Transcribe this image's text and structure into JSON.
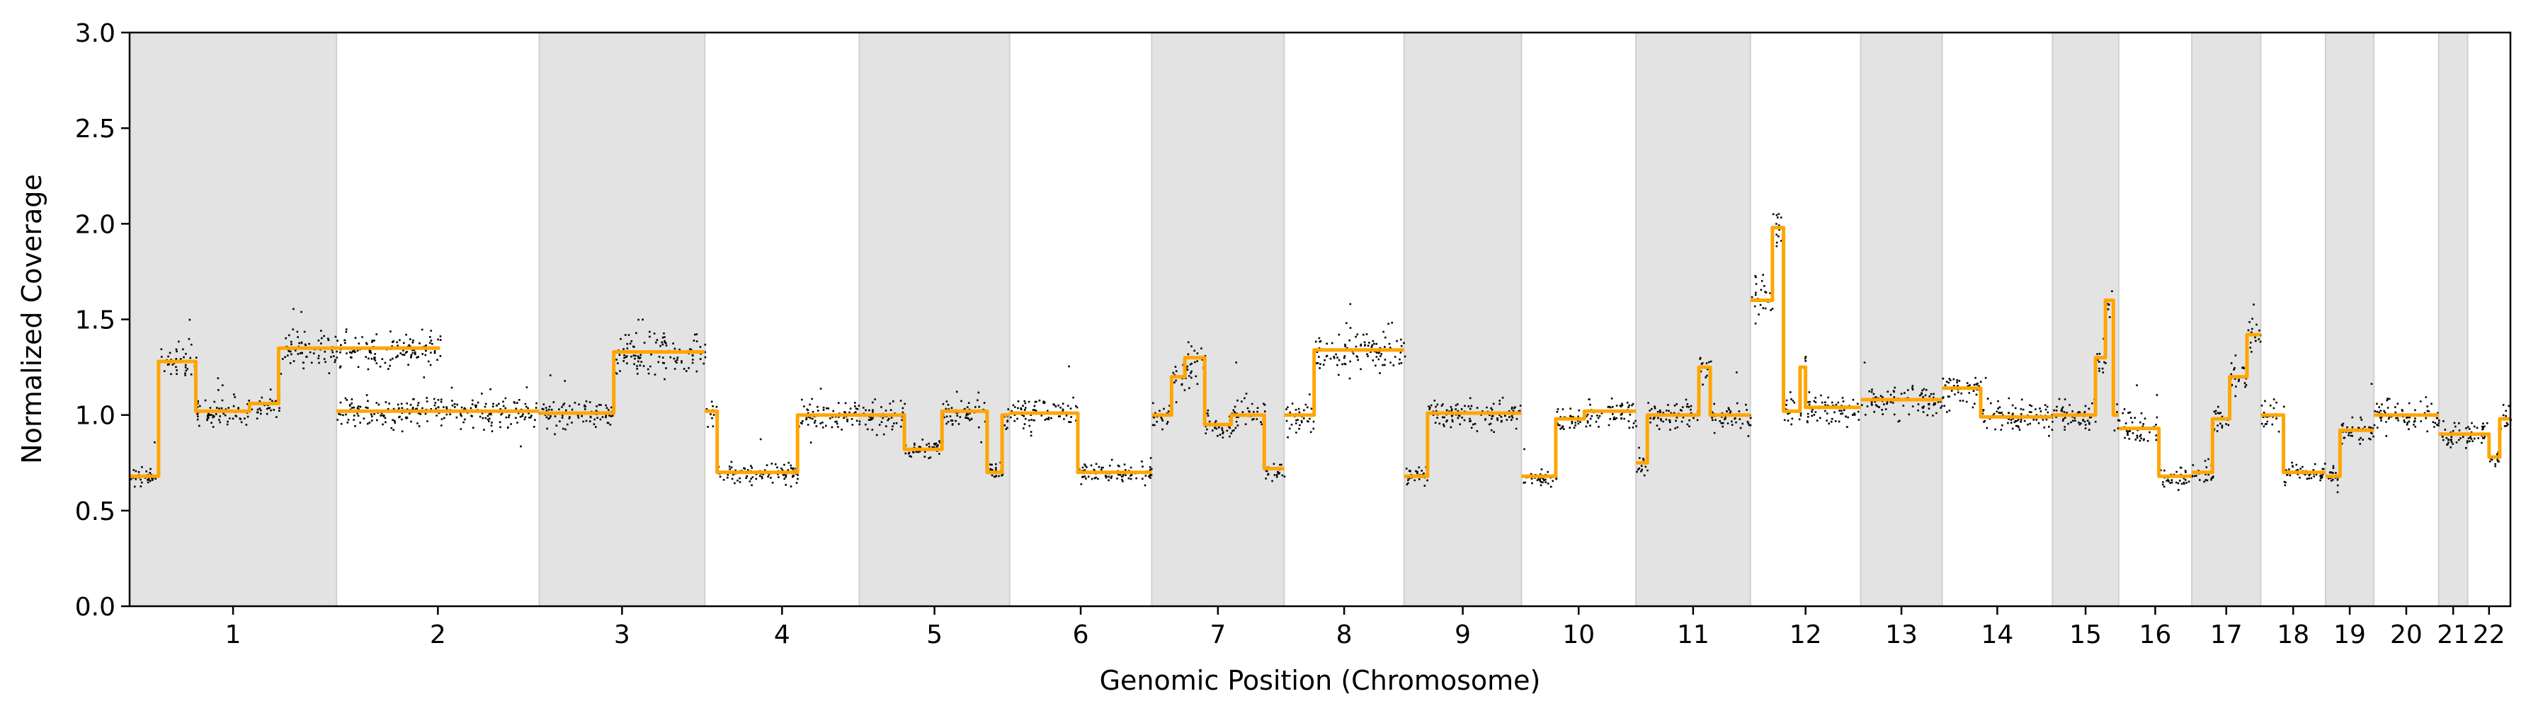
{
  "chart_data": {
    "type": "scatter",
    "title": "",
    "xlabel": "Genomic Position (Chromosome)",
    "ylabel": "Normalized Coverage",
    "ylim": [
      0.0,
      3.0
    ],
    "yticks": [
      "0.0",
      "0.5",
      "1.0",
      "1.5",
      "2.0",
      "2.5",
      "3.0"
    ],
    "grid": false,
    "legend": "none",
    "colors": {
      "points": "#000000",
      "segments": "#FFA500",
      "band": "#E3E3E3"
    },
    "chromosomes": [
      {
        "label": "1",
        "start": 0.0,
        "end": 1.5,
        "shaded": true,
        "segments": [
          [
            0.0,
            0.14,
            0.68
          ],
          [
            0.14,
            0.32,
            1.28
          ],
          [
            0.32,
            0.58,
            1.02
          ],
          [
            0.58,
            0.72,
            1.06
          ],
          [
            0.72,
            1.5,
            1.35
          ]
        ]
      },
      {
        "label": "2",
        "start": 1.5,
        "end": 2.97,
        "shaded": false,
        "segments": [
          [
            0.0,
            1.0,
            1.02
          ]
        ]
      },
      {
        "label": "3",
        "start": 2.97,
        "end": 4.17,
        "shaded": true,
        "segments": [
          [
            0.0,
            0.45,
            1.01
          ],
          [
            0.45,
            1.0,
            1.33
          ]
        ]
      },
      {
        "label": "4",
        "start": 4.17,
        "end": 5.29,
        "shaded": false,
        "segments": [
          [
            0.0,
            0.08,
            1.02
          ],
          [
            0.08,
            0.6,
            0.7
          ],
          [
            0.6,
            1.0,
            1.0
          ]
        ]
      },
      {
        "label": "5",
        "start": 5.29,
        "end": 6.38,
        "shaded": true,
        "segments": [
          [
            0.0,
            0.3,
            1.0
          ],
          [
            0.3,
            0.55,
            0.82
          ],
          [
            0.55,
            0.85,
            1.02
          ],
          [
            0.85,
            0.95,
            0.7
          ],
          [
            0.95,
            1.0,
            1.0
          ]
        ]
      },
      {
        "label": "6",
        "start": 6.38,
        "end": 7.41,
        "shaded": false,
        "segments": [
          [
            0.0,
            0.48,
            1.01
          ],
          [
            0.48,
            1.0,
            0.7
          ]
        ]
      },
      {
        "label": "7",
        "start": 7.41,
        "end": 8.37,
        "shaded": true,
        "segments": [
          [
            0.0,
            0.15,
            1.0
          ],
          [
            0.15,
            0.25,
            1.2
          ],
          [
            0.25,
            0.4,
            1.3
          ],
          [
            0.4,
            0.6,
            0.95
          ],
          [
            0.6,
            0.85,
            1.0
          ],
          [
            0.85,
            1.0,
            0.72
          ]
        ]
      },
      {
        "label": "8",
        "start": 8.37,
        "end": 9.24,
        "shaded": false,
        "segments": [
          [
            0.0,
            0.25,
            1.0
          ],
          [
            0.25,
            1.0,
            1.34
          ]
        ]
      },
      {
        "label": "9",
        "start": 9.24,
        "end": 10.09,
        "shaded": true,
        "segments": [
          [
            0.0,
            0.2,
            0.68
          ],
          [
            0.2,
            1.0,
            1.01
          ]
        ]
      },
      {
        "label": "10",
        "start": 10.09,
        "end": 10.92,
        "shaded": false,
        "segments": [
          [
            0.0,
            0.3,
            0.68
          ],
          [
            0.3,
            0.55,
            0.98
          ],
          [
            0.55,
            1.0,
            1.02
          ]
        ]
      },
      {
        "label": "11",
        "start": 10.92,
        "end": 11.75,
        "shaded": true,
        "segments": [
          [
            0.0,
            0.1,
            0.75
          ],
          [
            0.1,
            0.55,
            1.0
          ],
          [
            0.55,
            0.65,
            1.25
          ],
          [
            0.65,
            1.0,
            1.0
          ]
        ]
      },
      {
        "label": "12",
        "start": 11.75,
        "end": 12.55,
        "shaded": false,
        "segments": [
          [
            0.0,
            0.2,
            1.6
          ],
          [
            0.2,
            0.3,
            1.98
          ],
          [
            0.3,
            0.45,
            1.02
          ],
          [
            0.45,
            0.5,
            1.25
          ],
          [
            0.5,
            1.0,
            1.04
          ]
        ]
      },
      {
        "label": "13",
        "start": 12.55,
        "end": 13.14,
        "shaded": true,
        "segments": [
          [
            0.0,
            1.0,
            1.08
          ]
        ]
      },
      {
        "label": "14",
        "start": 13.14,
        "end": 13.94,
        "shaded": false,
        "segments": [
          [
            0.0,
            0.35,
            1.14
          ],
          [
            0.35,
            1.0,
            0.99
          ]
        ]
      },
      {
        "label": "15",
        "start": 13.94,
        "end": 14.42,
        "shaded": true,
        "segments": [
          [
            0.0,
            0.65,
            1.0
          ],
          [
            0.65,
            0.8,
            1.3
          ],
          [
            0.8,
            0.92,
            1.6
          ],
          [
            0.92,
            1.0,
            1.0
          ]
        ]
      },
      {
        "label": "16",
        "start": 14.42,
        "end": 14.95,
        "shaded": false,
        "segments": [
          [
            0.0,
            0.55,
            0.93
          ],
          [
            0.55,
            1.0,
            0.68
          ]
        ]
      },
      {
        "label": "17",
        "start": 14.95,
        "end": 15.45,
        "shaded": true,
        "segments": [
          [
            0.0,
            0.3,
            0.7
          ],
          [
            0.3,
            0.55,
            0.98
          ],
          [
            0.55,
            0.8,
            1.2
          ],
          [
            0.8,
            1.0,
            1.42
          ]
        ]
      },
      {
        "label": "18",
        "start": 15.45,
        "end": 15.92,
        "shaded": false,
        "segments": [
          [
            0.0,
            0.35,
            1.0
          ],
          [
            0.35,
            1.0,
            0.7
          ]
        ]
      },
      {
        "label": "19",
        "start": 15.92,
        "end": 16.27,
        "shaded": true,
        "segments": [
          [
            0.0,
            0.3,
            0.68
          ],
          [
            0.3,
            1.0,
            0.92
          ]
        ]
      },
      {
        "label": "20",
        "start": 16.27,
        "end": 16.74,
        "shaded": false,
        "segments": [
          [
            0.0,
            1.0,
            1.0
          ]
        ]
      },
      {
        "label": "21",
        "start": 16.74,
        "end": 16.95,
        "shaded": true,
        "segments": [
          [
            0.0,
            1.0,
            0.9
          ]
        ]
      },
      {
        "label": "22",
        "start": 16.95,
        "end": 17.26,
        "shaded": false,
        "segments": [
          [
            0.0,
            0.5,
            0.9
          ],
          [
            0.5,
            0.75,
            0.78
          ],
          [
            0.75,
            1.0,
            0.98
          ]
        ]
      }
    ]
  }
}
